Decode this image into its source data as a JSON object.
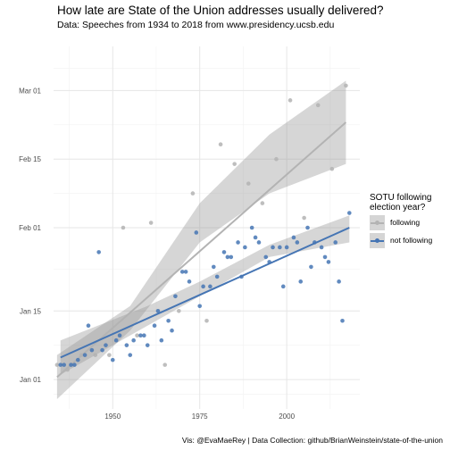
{
  "header": {
    "title": "How late are State of the Union addresses usually delivered?",
    "subtitle": "Data: Speeches from 1934 to 2018 from www.presidency.ucsb.edu"
  },
  "caption": "Vis: @EvaMaeRey | Data Collection: github/BrianWeinstein/state-of-the-union",
  "legend": {
    "title": "SOTU following election year?",
    "items": [
      {
        "label": "following",
        "color": "#b3b3b3"
      },
      {
        "label": "not following",
        "color": "#4575b4"
      }
    ]
  },
  "chart_data": {
    "type": "scatter",
    "title": "How late are State of the Union addresses usually delivered?",
    "xlabel": "",
    "ylabel": "",
    "xlim": [
      1933,
      2021
    ],
    "ylim": [
      -6,
      68
    ],
    "grid": true,
    "legend_position": "right",
    "x_ticks": [
      {
        "value": 1950,
        "label": "1950"
      },
      {
        "value": 1975,
        "label": "1975"
      },
      {
        "value": 2000,
        "label": "2000"
      }
    ],
    "y_ticks": [
      {
        "value": 0,
        "label": "Jan 01"
      },
      {
        "value": 14,
        "label": "Jan 15"
      },
      {
        "value": 31,
        "label": "Feb 01"
      },
      {
        "value": 45,
        "label": "Feb 15"
      },
      {
        "value": 59,
        "label": "Mar 01"
      }
    ],
    "y_unit_note": "",
    "series": [
      {
        "name": "following",
        "color": "#b3b3b3",
        "points": [
          [
            1934,
            3
          ],
          [
            1937,
            2
          ],
          [
            1941,
            5
          ],
          [
            1945,
            5
          ],
          [
            1949,
            5
          ],
          [
            1953,
            31
          ],
          [
            1957,
            9
          ],
          [
            1961,
            32
          ],
          [
            1965,
            3
          ],
          [
            1969,
            14
          ],
          [
            1973,
            38
          ],
          [
            1977,
            12
          ],
          [
            1981,
            48
          ],
          [
            1985,
            44
          ],
          [
            1989,
            40
          ],
          [
            1993,
            36
          ],
          [
            1997,
            45
          ],
          [
            2001,
            57
          ],
          [
            2005,
            33
          ],
          [
            2009,
            56
          ],
          [
            2013,
            43
          ],
          [
            2017,
            60
          ]
        ],
        "fit": {
          "start": [
            1934,
            0.5
          ],
          "end": [
            2017,
            52.5
          ]
        },
        "band_lower": [
          [
            1934,
            -4
          ],
          [
            1955,
            10
          ],
          [
            1975,
            28
          ],
          [
            1995,
            38
          ],
          [
            2017,
            44
          ]
        ],
        "band_upper": [
          [
            1934,
            5
          ],
          [
            1955,
            15
          ],
          [
            1975,
            36
          ],
          [
            1995,
            50
          ],
          [
            2017,
            61
          ]
        ]
      },
      {
        "name": "not following",
        "color": "#4575b4",
        "points": [
          [
            1935,
            3
          ],
          [
            1936,
            3
          ],
          [
            1938,
            3
          ],
          [
            1939,
            3
          ],
          [
            1940,
            4
          ],
          [
            1942,
            5
          ],
          [
            1943,
            11
          ],
          [
            1944,
            6
          ],
          [
            1946,
            26
          ],
          [
            1947,
            6
          ],
          [
            1948,
            7
          ],
          [
            1950,
            4
          ],
          [
            1951,
            8
          ],
          [
            1952,
            9
          ],
          [
            1954,
            7
          ],
          [
            1955,
            5
          ],
          [
            1956,
            8
          ],
          [
            1958,
            9
          ],
          [
            1959,
            9
          ],
          [
            1960,
            7
          ],
          [
            1962,
            11
          ],
          [
            1963,
            14
          ],
          [
            1964,
            8
          ],
          [
            1966,
            12
          ],
          [
            1967,
            10
          ],
          [
            1968,
            17
          ],
          [
            1970,
            22
          ],
          [
            1971,
            22
          ],
          [
            1972,
            20
          ],
          [
            1974,
            30
          ],
          [
            1975,
            15
          ],
          [
            1976,
            19
          ],
          [
            1978,
            19
          ],
          [
            1979,
            23
          ],
          [
            1980,
            21
          ],
          [
            1982,
            26
          ],
          [
            1983,
            25
          ],
          [
            1984,
            25
          ],
          [
            1986,
            28
          ],
          [
            1987,
            21
          ],
          [
            1988,
            27
          ],
          [
            1990,
            31
          ],
          [
            1991,
            29
          ],
          [
            1992,
            28
          ],
          [
            1994,
            25
          ],
          [
            1995,
            24
          ],
          [
            1996,
            27
          ],
          [
            1998,
            27
          ],
          [
            1999,
            19
          ],
          [
            2000,
            27
          ],
          [
            2002,
            29
          ],
          [
            2003,
            28
          ],
          [
            2004,
            20
          ],
          [
            2006,
            31
          ],
          [
            2007,
            23
          ],
          [
            2008,
            28
          ],
          [
            2010,
            27
          ],
          [
            2011,
            25
          ],
          [
            2012,
            24
          ],
          [
            2014,
            28
          ],
          [
            2015,
            20
          ],
          [
            2016,
            12
          ],
          [
            2018,
            34
          ]
        ],
        "fit": {
          "start": [
            1935,
            4.5
          ],
          "end": [
            2018,
            31
          ]
        },
        "band_lower": [
          [
            1935,
            1
          ],
          [
            1960,
            11
          ],
          [
            1975,
            17
          ],
          [
            1995,
            25
          ],
          [
            2018,
            28
          ]
        ],
        "band_upper": [
          [
            1935,
            8
          ],
          [
            1960,
            15
          ],
          [
            1975,
            20
          ],
          [
            1995,
            27.5
          ],
          [
            2018,
            33.5
          ]
        ]
      }
    ]
  }
}
